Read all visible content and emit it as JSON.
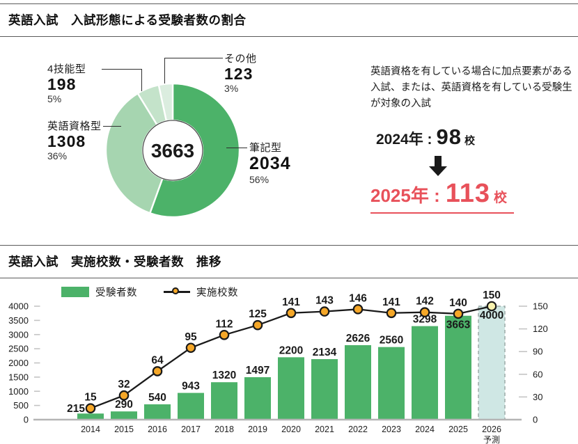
{
  "section1": {
    "title": "英語入試　入試形態による受験者数の割合",
    "note": "英語資格を有している場合に加点要素がある入試、または、英語資格を有している受験生が対象の入試",
    "before": {
      "label": "2024年 :",
      "value": "98",
      "unit": "校"
    },
    "after": {
      "label": "2025年 :",
      "value": "113",
      "unit": "校"
    },
    "accent_red": "#e8515a"
  },
  "section2": {
    "title": "英語入試　実施校数・受験者数　推移",
    "legend": [
      {
        "label": "受験者数",
        "swatch": "green-rect"
      },
      {
        "label": "実施校数",
        "swatch": "line-dot"
      }
    ]
  },
  "chart_data": [
    {
      "type": "pie",
      "title": "英語入試　入試形態による受験者数の割合",
      "center_total": "3663",
      "slices": [
        {
          "label": "筆記型",
          "value": 2034,
          "pct": "56%",
          "color": "#4cb269"
        },
        {
          "label": "英語資格型",
          "value": 1308,
          "pct": "36%",
          "color": "#a6d5b0"
        },
        {
          "label": "4技能型",
          "value": 198,
          "pct": "5%",
          "color": "#c4e3ca"
        },
        {
          "label": "その他",
          "value": 123,
          "pct": "3%",
          "color": "#dbeddf"
        }
      ]
    },
    {
      "type": "bar",
      "title": "英語入試　実施校数・受験者数　推移",
      "categories": [
        "2014",
        "2015",
        "2016",
        "2017",
        "2018",
        "2019",
        "2020",
        "2021",
        "2022",
        "2023",
        "2024",
        "2025",
        "2026"
      ],
      "forecast_category": "2026",
      "forecast_label": "予測",
      "series": [
        {
          "name": "受験者数",
          "type": "bar",
          "color": "#4cb269",
          "forecast_fill": "#cfe7e4",
          "forecast_stroke": "#97a5a3",
          "values": [
            215,
            290,
            540,
            943,
            1320,
            1497,
            2200,
            2134,
            2626,
            2560,
            3298,
            3663,
            4000
          ]
        },
        {
          "name": "実施校数",
          "type": "line",
          "color": "#1a1a1a",
          "point_color": "#f5a728",
          "forecast_point_color": "#f8f2ae",
          "values": [
            15,
            32,
            64,
            95,
            112,
            125,
            141,
            143,
            146,
            141,
            142,
            140,
            150
          ]
        }
      ],
      "left_axis": {
        "min": 0,
        "max": 4000,
        "step": 500
      },
      "right_axis": {
        "min": 0,
        "max": 150,
        "step": 30
      },
      "grid": false,
      "legend_position": "top-left"
    }
  ]
}
